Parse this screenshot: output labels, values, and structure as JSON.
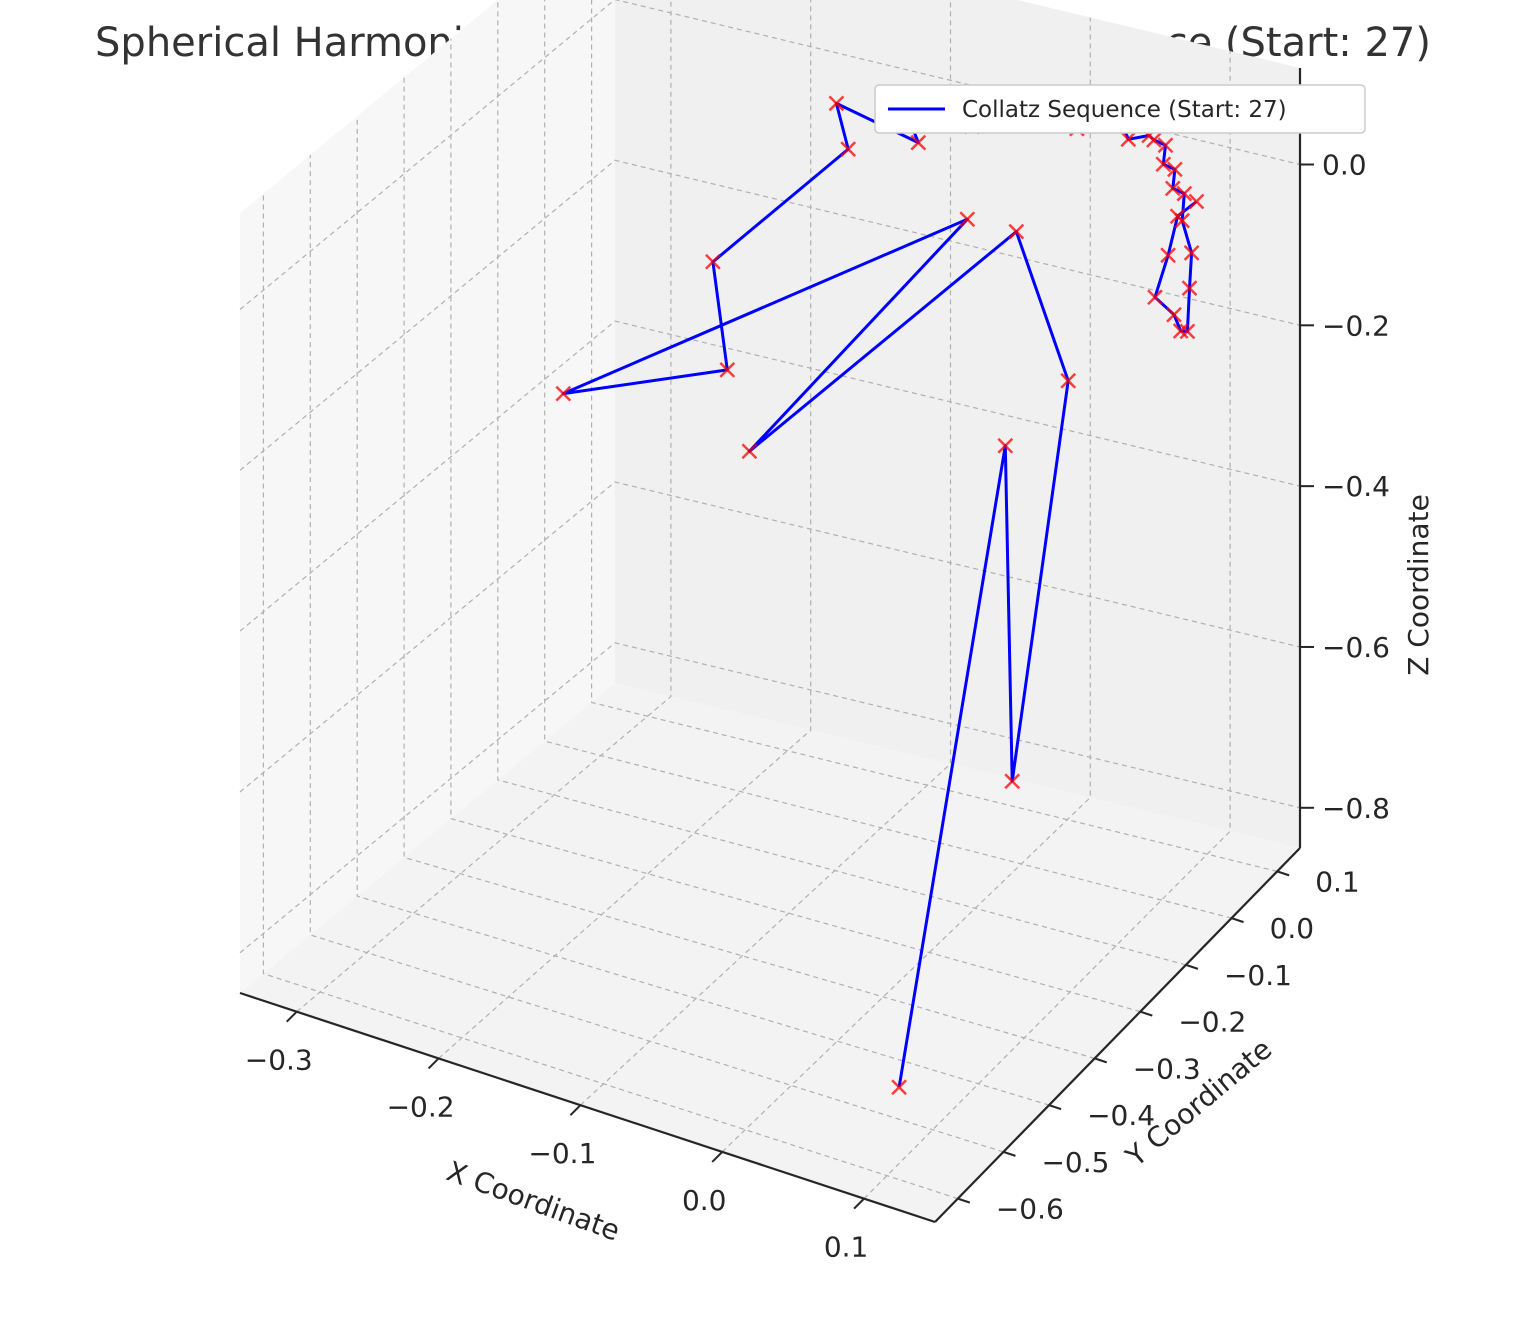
{
  "chart_data": {
    "type": "scatter3d-line",
    "title": "Spherical Harmonic Representation of Collatz Sequence (Start: 27)",
    "xlabel": "X Coordinate",
    "ylabel": "Y Coordinate",
    "zlabel": "Z Coordinate",
    "x_ticks": [
      "−0.3",
      "−0.2",
      "−0.1",
      "0.0",
      "0.1"
    ],
    "y_ticks": [
      "−0.6",
      "−0.5",
      "−0.4",
      "−0.3",
      "−0.2",
      "−0.1",
      "0.0",
      "0.1"
    ],
    "z_ticks": [
      "−0.8",
      "−0.6",
      "−0.4",
      "−0.2",
      "0.0"
    ],
    "x_tick_values": [
      -0.3,
      -0.2,
      -0.1,
      0.0,
      0.1
    ],
    "y_tick_values": [
      -0.6,
      -0.5,
      -0.4,
      -0.3,
      -0.2,
      -0.1,
      0.0,
      0.1
    ],
    "z_tick_values": [
      -0.8,
      -0.6,
      -0.4,
      -0.2,
      0.0
    ],
    "xlim": [
      -0.34,
      0.15
    ],
    "ylim": [
      -0.65,
      0.15
    ],
    "zlim": [
      -0.85,
      0.12
    ],
    "legend": {
      "label": "Collatz Sequence (Start: 27)",
      "placement": "top-right"
    },
    "grid": true,
    "colors": {
      "line": "#0000ff",
      "marker": "#ff0000",
      "pane": "#f2f2f2",
      "grid": "#b0b0b0",
      "title": "#333333"
    },
    "series": [
      {
        "name": "Collatz Sequence (Start: 27)",
        "x": [
          0.115,
          0.005,
          0.085,
          0.04,
          -0.02,
          -0.095,
          -0.055,
          -0.31,
          -0.17,
          -0.22,
          -0.14,
          -0.165,
          -0.09,
          -0.12,
          -0.055,
          -0.05,
          -0.02,
          -0.01,
          -0.005,
          0.0,
          0.02,
          0.04,
          0.06,
          0.065,
          0.075,
          0.08,
          0.085,
          0.09,
          0.095,
          0.1,
          0.105,
          0.115,
          0.12,
          0.125,
          0.13,
          0.135,
          0.128,
          0.121,
          0.118,
          0.125
        ],
        "y": [
          -0.62,
          -0.05,
          -0.28,
          -0.02,
          0.05,
          -0.3,
          0.05,
          -0.05,
          -0.12,
          0.0,
          0.05,
          0.1,
          0.05,
          0.1,
          0.06,
          0.1,
          0.08,
          0.11,
          0.07,
          0.1,
          0.06,
          0.09,
          0.05,
          0.08,
          0.06,
          0.07,
          0.05,
          0.06,
          0.04,
          0.05,
          0.03,
          0.02,
          0.0,
          -0.02,
          -0.05,
          -0.08,
          -0.1,
          -0.05,
          -0.02,
          0.0
        ],
        "z": [
          -0.72,
          -0.3,
          -0.55,
          -0.22,
          -0.1,
          -0.22,
          -0.1,
          -0.38,
          -0.25,
          -0.2,
          -0.05,
          -0.03,
          -0.02,
          0.0,
          0.01,
          0.03,
          0.02,
          0.04,
          0.03,
          0.05,
          0.04,
          0.05,
          0.05,
          0.04,
          0.05,
          0.04,
          0.03,
          0.02,
          0.01,
          0.0,
          -0.02,
          -0.05,
          -0.08,
          -0.12,
          -0.1,
          -0.06,
          -0.03,
          -0.01,
          0.02,
          0.03
        ]
      }
    ]
  }
}
